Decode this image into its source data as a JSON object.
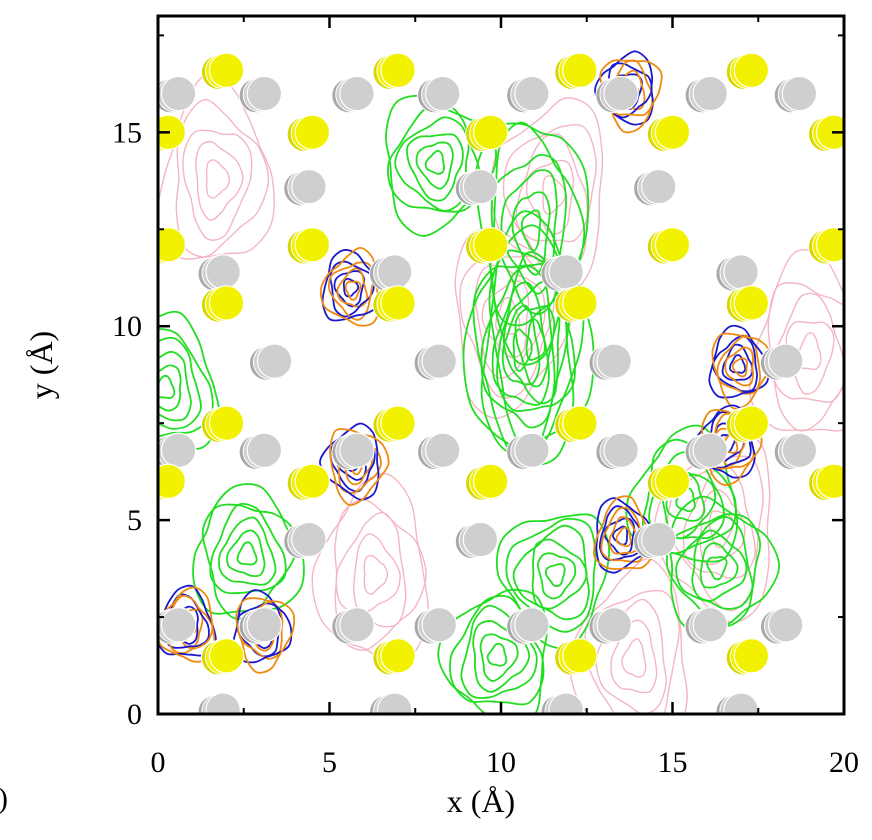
{
  "chart_data": {
    "type": "scatter",
    "title": "",
    "xlabel": "x (Å)",
    "ylabel": "y (Å)",
    "panel_label": ")",
    "xlim": [
      0,
      20
    ],
    "ylim": [
      0,
      18
    ],
    "xticks": [
      0,
      5,
      10,
      15,
      20
    ],
    "yticks": [
      0,
      5,
      10,
      15
    ],
    "grid": false,
    "legend": "none",
    "colors": {
      "yellow_atom": "#f2f200",
      "gray_atom": "#a9a9a9",
      "light_gray_atom": "#cfcfcf",
      "contour_green": "#22dd22",
      "contour_blue": "#1a1acc",
      "contour_orange": "#ee8a10",
      "contour_pink": "#f4b6c2"
    },
    "series": [
      {
        "kind": "yellow_atoms",
        "x": [
          2.0,
          7.0,
          12.3,
          17.3,
          0.3,
          4.5,
          9.7,
          15.0,
          19.7,
          2.0,
          7.0,
          12.3,
          17.3,
          0.3,
          4.5,
          9.7,
          15.0,
          19.7,
          2.0,
          7.0,
          12.3,
          17.3,
          0.3,
          4.5,
          9.7,
          15.0,
          19.7,
          2.0,
          7.0,
          12.3,
          17.3
        ],
        "y": [
          16.6,
          16.6,
          16.6,
          16.6,
          15.0,
          15.0,
          15.0,
          15.0,
          15.0,
          10.6,
          10.6,
          10.6,
          10.6,
          12.1,
          12.1,
          12.1,
          12.1,
          12.1,
          7.5,
          7.5,
          7.5,
          7.5,
          6.0,
          6.0,
          6.0,
          6.0,
          6.0,
          1.5,
          1.5,
          1.5,
          1.5
        ]
      },
      {
        "kind": "gray_atoms",
        "x": [
          0.6,
          3.1,
          5.8,
          8.3,
          10.9,
          13.5,
          16.1,
          18.7,
          4.4,
          9.4,
          14.6,
          1.9,
          6.9,
          11.9,
          17.0,
          3.4,
          8.2,
          13.3,
          18.3,
          0.6,
          5.8,
          10.9,
          16.1,
          3.1,
          8.3,
          13.5,
          18.7,
          4.4,
          9.4,
          14.6,
          0.6,
          5.8,
          10.9,
          16.1,
          3.1,
          8.2,
          13.3,
          18.3,
          1.9,
          6.9,
          11.9,
          17.0
        ],
        "y": [
          16.0,
          16.0,
          16.0,
          16.0,
          16.0,
          16.0,
          16.0,
          16.0,
          13.6,
          13.6,
          13.6,
          11.4,
          11.4,
          11.4,
          11.4,
          9.1,
          9.1,
          9.1,
          9.1,
          6.8,
          6.8,
          6.8,
          6.8,
          6.8,
          6.8,
          6.8,
          6.8,
          4.5,
          4.5,
          4.5,
          2.3,
          2.3,
          2.3,
          2.3,
          2.3,
          2.3,
          2.3,
          2.3,
          0.1,
          0.1,
          0.1,
          0.1
        ]
      },
      {
        "kind": "green_contour_centers",
        "x": [
          8.1,
          10.9,
          11.0,
          10.6,
          0.2,
          15.4,
          16.3,
          11.6,
          2.6,
          9.9
        ],
        "y": [
          14.2,
          12.5,
          9.6,
          9.4,
          8.4,
          5.5,
          3.8,
          3.6,
          4.1,
          1.5
        ]
      },
      {
        "kind": "blue_orange_contour_centers",
        "x": [
          13.7,
          5.6,
          16.9,
          5.7,
          3.0,
          0.8,
          13.5,
          16.6
        ],
        "y": [
          16.1,
          11.0,
          9.0,
          6.5,
          2.2,
          2.3,
          4.6,
          7.0
        ]
      },
      {
        "kind": "pink_contour_centers",
        "x": [
          10.2,
          11.5,
          1.7,
          16.4,
          13.9,
          19.0,
          6.3
        ],
        "y": [
          10.2,
          13.4,
          13.8,
          4.8,
          1.4,
          9.3,
          3.6
        ]
      }
    ]
  }
}
